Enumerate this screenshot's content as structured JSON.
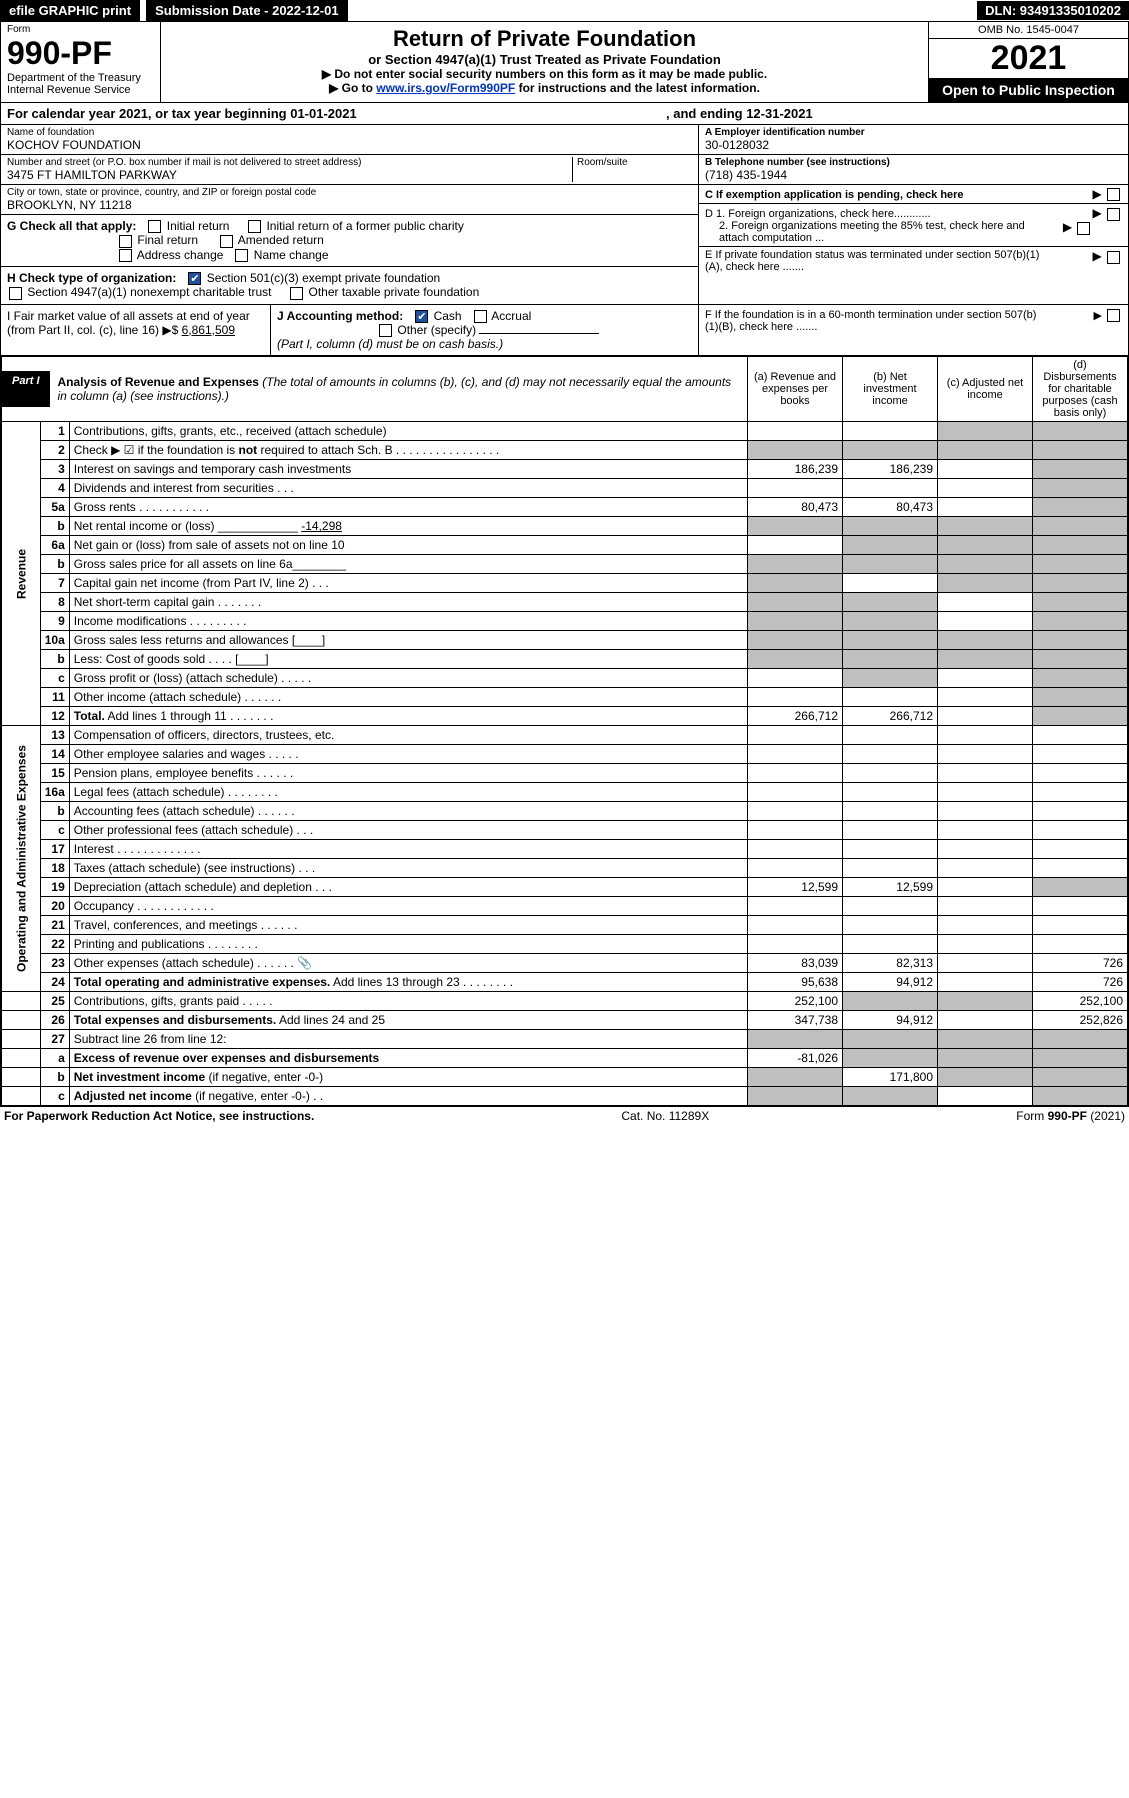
{
  "topbar": {
    "efile": "efile GRAPHIC print",
    "sub_label": "Submission Date - 2022-12-01",
    "dln": "DLN: 93491335010202"
  },
  "header": {
    "form_word": "Form",
    "form_no": "990-PF",
    "dept": "Department of the Treasury\nInternal Revenue Service",
    "title": "Return of Private Foundation",
    "subtitle": "or Section 4947(a)(1) Trust Treated as Private Foundation",
    "instr1": "▶ Do not enter social security numbers on this form as it may be made public.",
    "instr2_pre": "▶ Go to ",
    "instr2_link": "www.irs.gov/Form990PF",
    "instr2_post": " for instructions and the latest information.",
    "omb": "OMB No. 1545-0047",
    "year": "2021",
    "open": "Open to Public Inspection"
  },
  "cal": {
    "text_a": "For calendar year 2021, or tax year beginning 01-01-2021",
    "text_b": ", and ending 12-31-2021"
  },
  "info": {
    "name_lbl": "Name of foundation",
    "name": "KOCHOV FOUNDATION",
    "addr_lbl": "Number and street (or P.O. box number if mail is not delivered to street address)",
    "addr": "3475 FT HAMILTON PARKWAY",
    "room_lbl": "Room/suite",
    "city_lbl": "City or town, state or province, country, and ZIP or foreign postal code",
    "city": "BROOKLYN, NY  11218",
    "ein_lbl": "A Employer identification number",
    "ein": "30-0128032",
    "tel_lbl": "B Telephone number (see instructions)",
    "tel": "(718) 435-1944",
    "c_lbl": "C If exemption application is pending, check here",
    "d1": "D 1. Foreign organizations, check here............",
    "d2": "2. Foreign organizations meeting the 85% test, check here and attach computation ...",
    "e": "E  If private foundation status was terminated under section 507(b)(1)(A), check here .......",
    "f": "F  If the foundation is in a 60-month termination under section 507(b)(1)(B), check here ......."
  },
  "g": {
    "label": "G Check all that apply:",
    "opts": [
      "Initial return",
      "Initial return of a former public charity",
      "Final return",
      "Amended return",
      "Address change",
      "Name change"
    ]
  },
  "h": {
    "label": "H Check type of organization:",
    "opt1": "Section 501(c)(3) exempt private foundation",
    "opt2": "Section 4947(a)(1) nonexempt charitable trust",
    "opt3": "Other taxable private foundation"
  },
  "i": {
    "label": "I Fair market value of all assets at end of year (from Part II, col. (c), line 16) ▶$ ",
    "value": "6,861,509"
  },
  "j": {
    "label": "J Accounting method:",
    "cash": "Cash",
    "accrual": "Accrual",
    "other": "Other (specify)",
    "note": "(Part I, column (d) must be on cash basis.)"
  },
  "part1": {
    "label": "Part I",
    "title": "Analysis of Revenue and Expenses",
    "title_note": "(The total of amounts in columns (b), (c), and (d) may not necessarily equal the amounts in column (a) (see instructions).)",
    "col_a": "(a)   Revenue and expenses per books",
    "col_b": "(b)   Net investment income",
    "col_c": "(c)   Adjusted net income",
    "col_d": "(d)  Disbursements for charitable purposes (cash basis only)"
  },
  "sections": {
    "revenue": "Revenue",
    "opexp": "Operating and Administrative Expenses"
  },
  "rows": [
    {
      "sec": "rev",
      "n": "1",
      "d": "Contributions, gifts, grants, etc., received (attach schedule)",
      "a": "",
      "b": "",
      "c": "g",
      "dcol": "g"
    },
    {
      "sec": "rev",
      "n": "2",
      "d": "Check ▶ ☑ if the foundation is <b>not</b> required to attach Sch. B   .   .   .   .   .   .   .   .   .   .   .   .   .   .   .   .",
      "a": "g",
      "b": "g",
      "c": "g",
      "dcol": "g"
    },
    {
      "sec": "rev",
      "n": "3",
      "d": "Interest on savings and temporary cash investments",
      "a": "186,239",
      "b": "186,239",
      "c": "",
      "dcol": "g"
    },
    {
      "sec": "rev",
      "n": "4",
      "d": "Dividends and interest from securities    .   .   .",
      "a": "",
      "b": "",
      "c": "",
      "dcol": "g"
    },
    {
      "sec": "rev",
      "n": "5a",
      "d": "Gross rents    .   .   .   .   .   .   .   .   .   .   .",
      "a": "80,473",
      "b": "80,473",
      "c": "",
      "dcol": "g"
    },
    {
      "sec": "rev",
      "n": "b",
      "d": "Net rental income or (loss) ____________ <u>-14,298</u>",
      "a": "g",
      "b": "g",
      "c": "g",
      "dcol": "g"
    },
    {
      "sec": "rev",
      "n": "6a",
      "d": "Net gain or (loss) from sale of assets not on line 10",
      "a": "",
      "b": "g",
      "c": "g",
      "dcol": "g"
    },
    {
      "sec": "rev",
      "n": "b",
      "d": "Gross sales price for all assets on line 6a________",
      "a": "g",
      "b": "g",
      "c": "g",
      "dcol": "g"
    },
    {
      "sec": "rev",
      "n": "7",
      "d": "Capital gain net income (from Part IV, line 2)    .   .   .",
      "a": "g",
      "b": "",
      "c": "g",
      "dcol": "g"
    },
    {
      "sec": "rev",
      "n": "8",
      "d": "Net short-term capital gain   .   .   .   .   .   .   .",
      "a": "g",
      "b": "g",
      "c": "",
      "dcol": "g"
    },
    {
      "sec": "rev",
      "n": "9",
      "d": "Income modifications  .   .   .   .   .   .   .   .   .",
      "a": "g",
      "b": "g",
      "c": "",
      "dcol": "g"
    },
    {
      "sec": "rev",
      "n": "10a",
      "d": "Gross sales less returns and allowances  [____]",
      "a": "g",
      "b": "g",
      "c": "g",
      "dcol": "g"
    },
    {
      "sec": "rev",
      "n": "b",
      "d": "Less: Cost of goods sold     .   .   .   .    [____]",
      "a": "g",
      "b": "g",
      "c": "g",
      "dcol": "g"
    },
    {
      "sec": "rev",
      "n": "c",
      "d": "Gross profit or (loss) (attach schedule)    .   .   .   .   .",
      "a": "",
      "b": "g",
      "c": "",
      "dcol": "g"
    },
    {
      "sec": "rev",
      "n": "11",
      "d": "Other income (attach schedule)    .   .   .   .   .   .",
      "a": "",
      "b": "",
      "c": "",
      "dcol": "g"
    },
    {
      "sec": "rev",
      "n": "12",
      "d": "<b>Total.</b> Add lines 1 through 11   .   .   .   .   .   .   .",
      "a": "266,712",
      "b": "266,712",
      "c": "",
      "dcol": "g"
    },
    {
      "sec": "op",
      "n": "13",
      "d": "Compensation of officers, directors, trustees, etc.",
      "a": "",
      "b": "",
      "c": "",
      "dcol": ""
    },
    {
      "sec": "op",
      "n": "14",
      "d": "Other employee salaries and wages    .   .   .   .   .",
      "a": "",
      "b": "",
      "c": "",
      "dcol": ""
    },
    {
      "sec": "op",
      "n": "15",
      "d": "Pension plans, employee benefits  .   .   .   .   .   .",
      "a": "",
      "b": "",
      "c": "",
      "dcol": ""
    },
    {
      "sec": "op",
      "n": "16a",
      "d": "Legal fees (attach schedule)  .   .   .   .   .   .   .   .",
      "a": "",
      "b": "",
      "c": "",
      "dcol": ""
    },
    {
      "sec": "op",
      "n": "b",
      "d": "Accounting fees (attach schedule)  .   .   .   .   .   .",
      "a": "",
      "b": "",
      "c": "",
      "dcol": ""
    },
    {
      "sec": "op",
      "n": "c",
      "d": "Other professional fees (attach schedule)    .   .   .",
      "a": "",
      "b": "",
      "c": "",
      "dcol": ""
    },
    {
      "sec": "op",
      "n": "17",
      "d": "Interest  .   .   .   .   .   .   .   .   .   .   .   .   .",
      "a": "",
      "b": "",
      "c": "",
      "dcol": ""
    },
    {
      "sec": "op",
      "n": "18",
      "d": "Taxes (attach schedule) (see instructions)    .   .   .",
      "a": "",
      "b": "",
      "c": "",
      "dcol": ""
    },
    {
      "sec": "op",
      "n": "19",
      "d": "Depreciation (attach schedule) and depletion    .   .   .",
      "a": "12,599",
      "b": "12,599",
      "c": "",
      "dcol": "g"
    },
    {
      "sec": "op",
      "n": "20",
      "d": "Occupancy  .   .   .   .   .   .   .   .   .   .   .   .",
      "a": "",
      "b": "",
      "c": "",
      "dcol": ""
    },
    {
      "sec": "op",
      "n": "21",
      "d": "Travel, conferences, and meetings  .   .   .   .   .   .",
      "a": "",
      "b": "",
      "c": "",
      "dcol": ""
    },
    {
      "sec": "op",
      "n": "22",
      "d": "Printing and publications  .   .   .   .   .   .   .   .",
      "a": "",
      "b": "",
      "c": "",
      "dcol": ""
    },
    {
      "sec": "op",
      "n": "23",
      "d": "Other expenses (attach schedule)  .   .   .   .   .   .  📎",
      "a": "83,039",
      "b": "82,313",
      "c": "",
      "dcol": "726"
    },
    {
      "sec": "op",
      "n": "24",
      "d": "<b>Total operating and administrative expenses.</b> Add lines 13 through 23   .   .   .   .   .   .   .   .",
      "a": "95,638",
      "b": "94,912",
      "c": "",
      "dcol": "726"
    },
    {
      "sec": "",
      "n": "25",
      "d": "Contributions, gifts, grants paid     .   .   .   .   .",
      "a": "252,100",
      "b": "g",
      "c": "g",
      "dcol": "252,100"
    },
    {
      "sec": "",
      "n": "26",
      "d": "<b>Total expenses and disbursements.</b> Add lines 24 and 25",
      "a": "347,738",
      "b": "94,912",
      "c": "",
      "dcol": "252,826"
    },
    {
      "sec": "",
      "n": "27",
      "d": "Subtract line 26 from line 12:",
      "a": "g",
      "b": "g",
      "c": "g",
      "dcol": "g"
    },
    {
      "sec": "",
      "n": "a",
      "d": "<b>Excess of revenue over expenses and disbursements</b>",
      "a": "-81,026",
      "b": "g",
      "c": "g",
      "dcol": "g"
    },
    {
      "sec": "",
      "n": "b",
      "d": "<b>Net investment income</b> (if negative, enter -0-)",
      "a": "g",
      "b": "171,800",
      "c": "g",
      "dcol": "g"
    },
    {
      "sec": "",
      "n": "c",
      "d": "<b>Adjusted net income</b> (if negative, enter -0-)   .   .",
      "a": "g",
      "b": "g",
      "c": "",
      "dcol": "g"
    }
  ],
  "footer": {
    "left": "For Paperwork Reduction Act Notice, see instructions.",
    "mid": "Cat. No. 11289X",
    "right": "Form 990-PF (2021)"
  },
  "colors": {
    "grey": "#bfbfbf"
  }
}
